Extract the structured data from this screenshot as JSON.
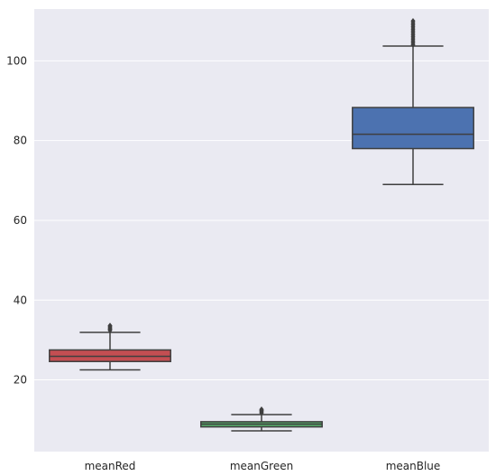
{
  "chart_data": {
    "type": "box",
    "title": "",
    "xlabel": "",
    "ylabel": "",
    "ylim": [
      2,
      113
    ],
    "yticks": [
      20,
      40,
      60,
      80,
      100
    ],
    "ytick_labels": [
      "20",
      "40",
      "60",
      "80",
      "100"
    ],
    "grid": true,
    "categories": [
      "meanRed",
      "meanGreen",
      "meanBlue"
    ],
    "boxes": [
      {
        "name": "meanRed",
        "color": "#c44e52",
        "whisker_low": 22.5,
        "q1": 24.6,
        "median": 25.9,
        "q3": 27.5,
        "whisker_high": 31.9,
        "outliers": [
          32.4,
          32.7,
          33.0,
          33.3,
          33.6
        ]
      },
      {
        "name": "meanGreen",
        "color": "#55a868",
        "whisker_low": 7.2,
        "q1": 8.2,
        "median": 8.9,
        "q3": 9.5,
        "whisker_high": 11.3,
        "outliers": [
          11.7,
          12.0,
          12.3,
          12.6
        ]
      },
      {
        "name": "meanBlue",
        "color": "#4c72b0",
        "whisker_low": 69.0,
        "q1": 78.0,
        "median": 81.6,
        "q3": 88.3,
        "whisker_high": 103.7,
        "outliers": [
          104.0,
          104.5,
          105.0,
          105.5,
          106.0,
          106.5,
          107.0,
          107.5,
          108.0,
          108.5,
          109.0,
          109.5,
          110.0
        ]
      }
    ],
    "style": {
      "background": "#eaeaf2",
      "grid_color": "#ffffff",
      "line_color": "#3f3f3f"
    }
  }
}
